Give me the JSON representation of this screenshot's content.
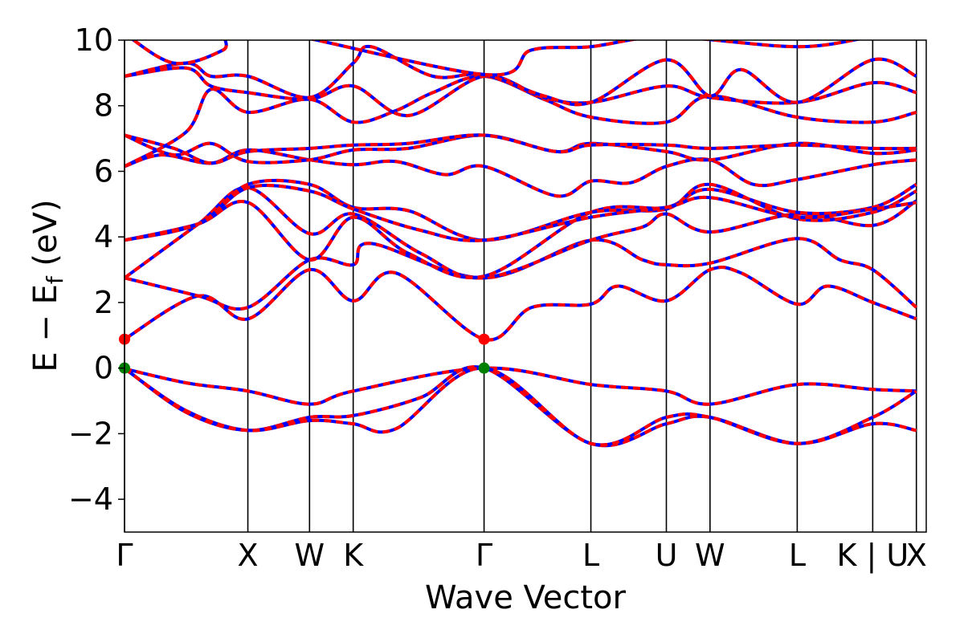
{
  "chart_data": {
    "type": "line",
    "xlabel": "Wave Vector",
    "ylabel_main": "E − E",
    "ylabel_sub": "f",
    "ylabel_unit": " (eV)",
    "ylim": [
      -5,
      10
    ],
    "yticks": [
      -4,
      -2,
      0,
      2,
      4,
      6,
      8,
      10
    ],
    "xlim": [
      0,
      6.5
    ],
    "kpath": [
      {
        "label": "Γ",
        "x": 0.0
      },
      {
        "label": "X",
        "x": 1.0
      },
      {
        "label": "W",
        "x": 1.5
      },
      {
        "label": "K",
        "x": 1.854
      },
      {
        "label": "Γ",
        "x": 2.915
      },
      {
        "label": "L",
        "x": 3.781
      },
      {
        "label": "U",
        "x": 4.393
      },
      {
        "label": "W",
        "x": 4.747
      },
      {
        "label": "L",
        "x": 5.454
      },
      {
        "label": "K | U",
        "x": 6.066
      },
      {
        "label": "X",
        "x": 6.42
      }
    ],
    "colors": {
      "dft": "#0000ff",
      "interp": "#ff0000",
      "vbm": "#008000",
      "cbm": "#ff0000"
    },
    "markers": [
      {
        "type": "cbm",
        "x": 0.0,
        "y": 0.88
      },
      {
        "type": "vbm",
        "x": 0.0,
        "y": 0.0
      },
      {
        "type": "cbm",
        "x": 2.915,
        "y": 0.88
      },
      {
        "type": "vbm",
        "x": 2.915,
        "y": 0.0
      }
    ],
    "bands": [
      {
        "name": "",
        "points": [
          [
            0,
            -0.02
          ],
          [
            0.5,
            -0.45
          ],
          [
            1.0,
            -0.7
          ],
          [
            1.5,
            -1.1
          ],
          [
            1.854,
            -0.7
          ],
          [
            2.915,
            0.0
          ],
          [
            3.781,
            -0.5
          ],
          [
            4.393,
            -0.7
          ],
          [
            4.747,
            -1.1
          ],
          [
            5.454,
            -0.5
          ],
          [
            6.066,
            -0.65
          ],
          [
            6.42,
            -0.7
          ]
        ]
      },
      {
        "name": "",
        "points": [
          [
            0,
            0.0
          ],
          [
            0.5,
            -1.35
          ],
          [
            1.0,
            -1.9
          ],
          [
            1.5,
            -1.5
          ],
          [
            1.854,
            -1.45
          ],
          [
            2.4,
            -0.9
          ],
          [
            2.915,
            0.0
          ],
          [
            3.781,
            -2.3
          ],
          [
            4.393,
            -1.7
          ],
          [
            4.747,
            -1.5
          ],
          [
            5.454,
            -2.3
          ],
          [
            6.066,
            -1.7
          ],
          [
            6.42,
            -1.9
          ]
        ]
      },
      {
        "name": "",
        "points": [
          [
            0,
            -0.02
          ],
          [
            0.5,
            -1.3
          ],
          [
            1.0,
            -1.9
          ],
          [
            1.5,
            -1.6
          ],
          [
            1.854,
            -1.7
          ],
          [
            2.2,
            -1.85
          ],
          [
            2.915,
            0.0
          ],
          [
            3.781,
            -2.3
          ],
          [
            4.393,
            -1.5
          ],
          [
            4.747,
            -1.5
          ],
          [
            5.454,
            -2.3
          ],
          [
            6.066,
            -1.5
          ],
          [
            6.42,
            -0.7
          ]
        ]
      },
      {
        "name": "",
        "points": [
          [
            0,
            0.88
          ],
          [
            0.6,
            2.2
          ],
          [
            1.0,
            1.5
          ],
          [
            1.5,
            3.0
          ],
          [
            1.854,
            2.05
          ],
          [
            2.2,
            2.9
          ],
          [
            2.915,
            0.88
          ],
          [
            3.3,
            1.85
          ],
          [
            3.781,
            1.95
          ],
          [
            4.0,
            2.5
          ],
          [
            4.393,
            2.05
          ],
          [
            4.747,
            3.0
          ],
          [
            5.0,
            2.9
          ],
          [
            5.454,
            1.95
          ],
          [
            5.7,
            2.5
          ],
          [
            6.066,
            2.0
          ],
          [
            6.42,
            1.5
          ]
        ]
      },
      {
        "name": "",
        "points": [
          [
            0,
            2.75
          ],
          [
            0.6,
            2.2
          ],
          [
            1.0,
            1.85
          ],
          [
            1.5,
            3.3
          ],
          [
            1.854,
            3.15
          ],
          [
            2.0,
            3.8
          ],
          [
            2.915,
            2.75
          ],
          [
            3.781,
            3.9
          ],
          [
            4.2,
            3.3
          ],
          [
            4.393,
            3.15
          ],
          [
            4.747,
            3.2
          ],
          [
            5.454,
            3.95
          ],
          [
            5.8,
            3.3
          ],
          [
            6.066,
            3.0
          ],
          [
            6.42,
            1.85
          ]
        ]
      },
      {
        "name": "",
        "points": [
          [
            0,
            2.75
          ],
          [
            0.6,
            4.4
          ],
          [
            1.0,
            5.5
          ],
          [
            1.5,
            4.1
          ],
          [
            1.854,
            4.7
          ],
          [
            2.4,
            3.5
          ],
          [
            2.915,
            2.75
          ],
          [
            3.781,
            3.9
          ],
          [
            4.2,
            4.3
          ],
          [
            4.393,
            4.7
          ],
          [
            4.747,
            4.15
          ],
          [
            5.454,
            4.7
          ],
          [
            6.066,
            4.35
          ],
          [
            6.42,
            5.1
          ]
        ]
      },
      {
        "name": "",
        "points": [
          [
            0,
            3.9
          ],
          [
            0.6,
            4.4
          ],
          [
            1.0,
            5.05
          ],
          [
            1.5,
            3.3
          ],
          [
            1.854,
            4.6
          ],
          [
            2.3,
            3.5
          ],
          [
            2.915,
            2.8
          ],
          [
            3.781,
            4.75
          ],
          [
            4.393,
            4.9
          ],
          [
            4.747,
            5.45
          ],
          [
            5.454,
            4.75
          ],
          [
            6.066,
            4.9
          ],
          [
            6.42,
            5.6
          ]
        ]
      },
      {
        "name": "",
        "points": [
          [
            0,
            3.9
          ],
          [
            0.6,
            4.4
          ],
          [
            1.0,
            5.6
          ],
          [
            1.5,
            5.6
          ],
          [
            1.854,
            4.9
          ],
          [
            2.3,
            4.8
          ],
          [
            2.915,
            3.9
          ],
          [
            3.781,
            4.75
          ],
          [
            4.393,
            4.85
          ],
          [
            4.747,
            5.6
          ],
          [
            5.454,
            4.55
          ],
          [
            6.066,
            4.75
          ],
          [
            6.42,
            5.4
          ]
        ]
      },
      {
        "name": "",
        "points": [
          [
            0,
            3.9
          ],
          [
            0.6,
            4.4
          ],
          [
            1.0,
            5.5
          ],
          [
            1.5,
            5.4
          ],
          [
            1.854,
            4.85
          ],
          [
            2.4,
            4.2
          ],
          [
            2.915,
            3.9
          ],
          [
            3.781,
            4.6
          ],
          [
            4.393,
            4.9
          ],
          [
            4.747,
            5.2
          ],
          [
            5.454,
            4.6
          ],
          [
            6.066,
            4.85
          ],
          [
            6.42,
            5.05
          ]
        ]
      },
      {
        "name": "",
        "points": [
          [
            0,
            6.15
          ],
          [
            0.3,
            6.5
          ],
          [
            0.7,
            6.25
          ],
          [
            1.0,
            6.65
          ],
          [
            1.5,
            6.35
          ],
          [
            1.854,
            6.2
          ],
          [
            2.2,
            6.3
          ],
          [
            2.6,
            5.9
          ],
          [
            2.915,
            6.15
          ],
          [
            3.5,
            5.25
          ],
          [
            3.781,
            5.7
          ],
          [
            4.1,
            5.65
          ],
          [
            4.393,
            6.15
          ],
          [
            4.747,
            6.35
          ],
          [
            5.1,
            5.6
          ],
          [
            5.454,
            5.75
          ],
          [
            6.066,
            6.2
          ],
          [
            6.42,
            6.35
          ]
        ]
      },
      {
        "name": "",
        "points": [
          [
            0,
            7.1
          ],
          [
            0.4,
            6.5
          ],
          [
            0.7,
            6.85
          ],
          [
            1.0,
            6.3
          ],
          [
            1.5,
            6.35
          ],
          [
            1.854,
            6.65
          ],
          [
            2.3,
            6.7
          ],
          [
            2.915,
            7.1
          ],
          [
            3.5,
            6.6
          ],
          [
            3.781,
            6.85
          ],
          [
            4.393,
            6.6
          ],
          [
            4.747,
            6.35
          ],
          [
            5.454,
            6.85
          ],
          [
            6.066,
            6.55
          ],
          [
            6.42,
            6.65
          ]
        ]
      },
      {
        "name": "",
        "points": [
          [
            0,
            7.1
          ],
          [
            0.4,
            6.7
          ],
          [
            0.7,
            6.25
          ],
          [
            1.0,
            6.6
          ],
          [
            1.5,
            6.7
          ],
          [
            1.854,
            6.8
          ],
          [
            2.3,
            6.85
          ],
          [
            2.915,
            7.1
          ],
          [
            3.5,
            6.6
          ],
          [
            3.781,
            6.8
          ],
          [
            4.393,
            6.8
          ],
          [
            4.747,
            6.7
          ],
          [
            5.454,
            6.8
          ],
          [
            6.066,
            6.7
          ],
          [
            6.42,
            6.7
          ]
        ]
      },
      {
        "name": "",
        "points": [
          [
            0,
            6.15
          ],
          [
            0.5,
            7.2
          ],
          [
            0.7,
            8.5
          ],
          [
            1.0,
            7.8
          ],
          [
            1.5,
            8.2
          ],
          [
            1.854,
            7.5
          ],
          [
            2.2,
            7.85
          ],
          [
            2.5,
            8.4
          ],
          [
            2.915,
            8.9
          ],
          [
            3.4,
            8.2
          ],
          [
            3.781,
            7.65
          ],
          [
            4.393,
            7.5
          ],
          [
            4.747,
            8.3
          ],
          [
            5.454,
            7.65
          ],
          [
            6.066,
            7.5
          ],
          [
            6.42,
            7.8
          ]
        ]
      },
      {
        "name": "",
        "points": [
          [
            0,
            8.9
          ],
          [
            0.5,
            9.15
          ],
          [
            0.7,
            8.6
          ],
          [
            1.0,
            8.4
          ],
          [
            1.5,
            8.2
          ],
          [
            1.854,
            8.6
          ],
          [
            2.3,
            7.7
          ],
          [
            2.915,
            8.9
          ],
          [
            3.4,
            8.25
          ],
          [
            3.781,
            8.1
          ],
          [
            4.393,
            8.6
          ],
          [
            4.747,
            8.25
          ],
          [
            5.454,
            8.1
          ],
          [
            6.066,
            8.7
          ],
          [
            6.42,
            8.4
          ]
        ]
      },
      {
        "name": "",
        "points": [
          [
            0,
            8.9
          ],
          [
            0.5,
            9.3
          ],
          [
            0.7,
            8.9
          ],
          [
            1.0,
            8.9
          ],
          [
            1.5,
            8.25
          ],
          [
            1.854,
            9.3
          ],
          [
            2.0,
            9.8
          ],
          [
            2.5,
            8.9
          ],
          [
            2.915,
            8.95
          ],
          [
            3.4,
            8.3
          ],
          [
            3.781,
            8.1
          ],
          [
            4.393,
            9.4
          ],
          [
            4.747,
            8.3
          ],
          [
            5.0,
            9.1
          ],
          [
            5.454,
            8.1
          ],
          [
            6.066,
            9.4
          ],
          [
            6.42,
            8.9
          ]
        ]
      },
      {
        "name": "",
        "points": [
          [
            0,
            10.2
          ],
          [
            0.4,
            9.3
          ],
          [
            0.8,
            9.7
          ],
          [
            1.0,
            10.4
          ],
          [
            2.915,
            8.95
          ],
          [
            3.3,
            9.7
          ],
          [
            3.781,
            9.8
          ],
          [
            4.393,
            10.1
          ],
          [
            5.454,
            9.8
          ],
          [
            6.066,
            10.1
          ],
          [
            6.42,
            10.2
          ]
        ]
      }
    ]
  }
}
